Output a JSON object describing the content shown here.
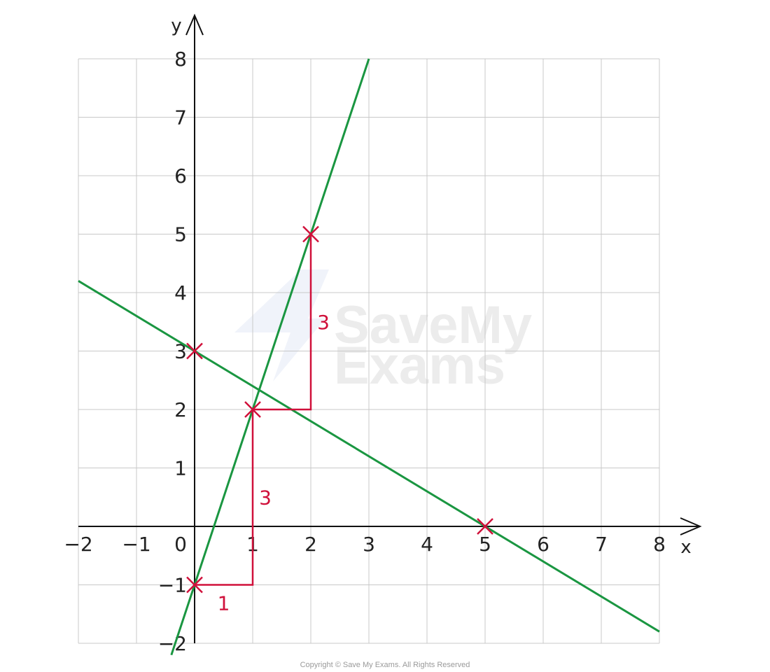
{
  "chart_data": {
    "type": "line",
    "xlabel": "x",
    "ylabel": "y",
    "xlim": [
      -2,
      8
    ],
    "ylim": [
      -2,
      8
    ],
    "grid": true,
    "x_ticks": [
      -2,
      -1,
      0,
      1,
      2,
      3,
      4,
      5,
      6,
      7,
      8
    ],
    "y_ticks": [
      -2,
      -1,
      1,
      2,
      3,
      4,
      5,
      6,
      7,
      8
    ],
    "x_tick_labels": [
      "−2",
      "−1",
      "0",
      "1",
      "2",
      "3",
      "4",
      "5",
      "6",
      "7",
      "8"
    ],
    "y_tick_labels": [
      "−2",
      "−1",
      "1",
      "2",
      "3",
      "4",
      "5",
      "6",
      "7",
      "8"
    ],
    "series": [
      {
        "x": [
          -0.4,
          3
        ],
        "y": [
          -2.2,
          8
        ],
        "color": "#1a9641"
      },
      {
        "x": [
          -2,
          8
        ],
        "y": [
          4.2,
          -1.8
        ],
        "color": "#1a9641"
      }
    ],
    "points": [
      {
        "x": 0,
        "y": -1
      },
      {
        "x": 1,
        "y": 2
      },
      {
        "x": 2,
        "y": 5
      },
      {
        "x": 0,
        "y": 3
      },
      {
        "x": 5,
        "y": 0
      }
    ],
    "point_color": "#d0103a",
    "steps": [
      {
        "from": [
          0,
          -1
        ],
        "corner": [
          1,
          -1
        ],
        "to": [
          1,
          2
        ],
        "run_label": "1",
        "rise_label": "3"
      },
      {
        "from": [
          1,
          2
        ],
        "corner": [
          2,
          2
        ],
        "to": [
          2,
          5
        ],
        "run_label": "",
        "rise_label": "3"
      }
    ],
    "step_color": "#d0103a"
  },
  "watermark": {
    "line1": "SaveMy",
    "line2": "Exams"
  },
  "copyright": "Copyright © Save My Exams. All Rights Reserved"
}
